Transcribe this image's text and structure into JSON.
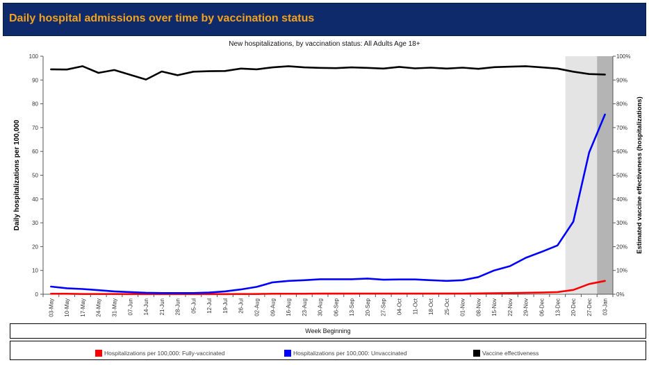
{
  "banner": {
    "title": "Daily hospital admissions over time by vaccination status"
  },
  "chart_data": {
    "type": "line",
    "title": "New hospitalizations, by vaccination status: All Adults Age 18+",
    "xlabel": "Week Beginning",
    "ylabel": "Daily hospitalizations per 100,000",
    "y2label": "Estimated vaccine effectiveness (hospitalizations)",
    "ylim": [
      0,
      100
    ],
    "y2lim": [
      0,
      100
    ],
    "yticks": [
      "0",
      "10",
      "20",
      "30",
      "40",
      "50",
      "60",
      "70",
      "80",
      "90",
      "100"
    ],
    "y2ticks": [
      "0%",
      "10%",
      "20%",
      "30%",
      "40%",
      "50%",
      "60%",
      "70%",
      "80%",
      "90%",
      "100%"
    ],
    "categories": [
      "03-May",
      "10-May",
      "17-May",
      "24-May",
      "31-May",
      "07-Jun",
      "14-Jun",
      "21-Jun",
      "28-Jun",
      "05-Jul",
      "12-Jul",
      "19-Jul",
      "26-Jul",
      "02-Aug",
      "09-Aug",
      "16-Aug",
      "23-Aug",
      "30-Aug",
      "06-Sep",
      "13-Sep",
      "20-Sep",
      "27-Sep",
      "04-Oct",
      "11-Oct",
      "18-Oct",
      "25-Oct",
      "01-Nov",
      "08-Nov",
      "15-Nov",
      "22-Nov",
      "29-Nov",
      "06-Dec",
      "13-Dec",
      "20-Dec",
      "27-Dec",
      "03-Jan"
    ],
    "shaded_periods": [
      {
        "from": "20-Dec",
        "to": "27-Dec",
        "color": "#e4e4e4"
      },
      {
        "from": "03-Jan",
        "to": "03-Jan",
        "color": "#b4b4b4"
      }
    ],
    "series": [
      {
        "name": "Hospitalizations per 100,000: Fully-vaccinated",
        "color": "#ff0000",
        "axis": "left",
        "values": [
          0.2,
          0.2,
          0.1,
          0.1,
          0.1,
          0.05,
          0.05,
          0.05,
          0.05,
          0.05,
          0.05,
          0.05,
          0.1,
          0.1,
          0.2,
          0.2,
          0.2,
          0.25,
          0.25,
          0.25,
          0.3,
          0.3,
          0.3,
          0.3,
          0.3,
          0.3,
          0.3,
          0.35,
          0.4,
          0.5,
          0.6,
          0.7,
          0.9,
          1.8,
          4.3,
          5.6
        ]
      },
      {
        "name": "Hospitalizations per 100,000: Unvaccinated",
        "color": "#0000ff",
        "axis": "left",
        "values": [
          3.2,
          2.5,
          2.2,
          1.7,
          1.2,
          0.9,
          0.6,
          0.5,
          0.5,
          0.5,
          0.7,
          1.2,
          2.0,
          3.1,
          5.0,
          5.6,
          5.9,
          6.3,
          6.3,
          6.3,
          6.6,
          6.1,
          6.2,
          6.2,
          5.9,
          5.6,
          5.9,
          7.2,
          10.0,
          11.8,
          15.3,
          17.8,
          20.5,
          30.5,
          59.5,
          75.5
        ]
      },
      {
        "name": "Vaccine effectiveness",
        "color": "#000000",
        "axis": "right",
        "values": [
          94.5,
          94.4,
          95.8,
          93.0,
          94.2,
          92.2,
          90.2,
          93.6,
          92.0,
          93.5,
          93.7,
          93.8,
          94.8,
          94.5,
          95.3,
          95.8,
          95.3,
          95.1,
          95.0,
          95.3,
          95.1,
          94.8,
          95.5,
          94.9,
          95.2,
          94.8,
          95.2,
          94.7,
          95.4,
          95.6,
          95.8,
          95.3,
          94.8,
          93.5,
          92.5,
          92.3
        ]
      }
    ]
  }
}
